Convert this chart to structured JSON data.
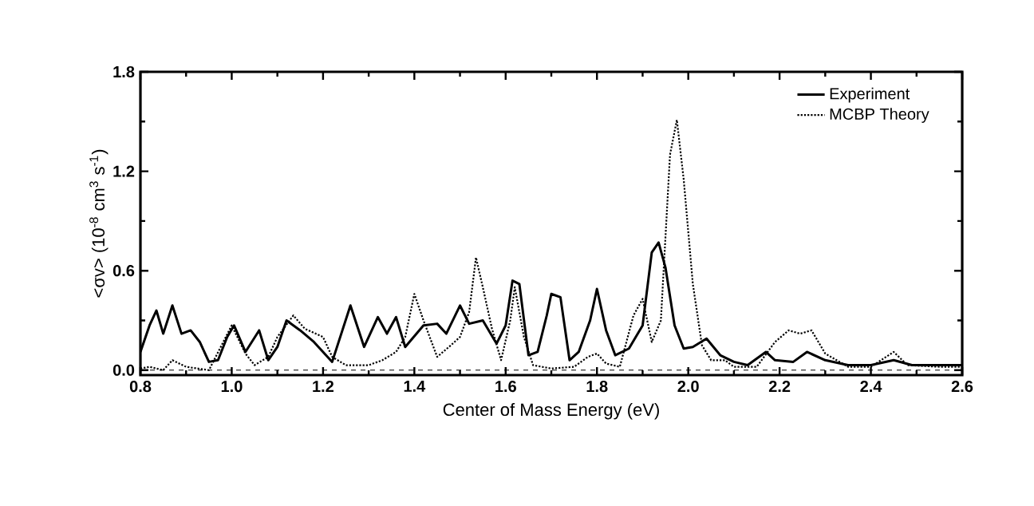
{
  "chart_data": {
    "type": "line",
    "xlabel": "Center of Mass Energy (eV)",
    "ylabel": "<σv> (10$^{-8}$ cm$^{3}$ s$^{-1}$)",
    "xlim": [
      0.8,
      2.6
    ],
    "xticks": [
      0.8,
      {
        "value": 1.0,
        "label": "1.0"
      },
      1.2,
      1.4,
      1.6,
      1.8,
      {
        "value": 2.0,
        "label": "2.0"
      },
      2.2,
      2.4,
      2.6
    ],
    "ylim": [
      -0.03,
      1.8
    ],
    "yticks": [
      {
        "value": 0.0,
        "label": "0.0"
      },
      0.6,
      1.2,
      1.8
    ],
    "legend": "top right",
    "grid": false,
    "marker": "none",
    "ref_lines": [
      {
        "axis": "y",
        "value": 0.0,
        "line_style": "dashed"
      }
    ],
    "series": [
      {
        "name": "Experiment",
        "color": "#000000",
        "line_style": "solid",
        "x": [
          0.8,
          0.82,
          0.835,
          0.85,
          0.87,
          0.89,
          0.91,
          0.93,
          0.95,
          0.97,
          0.99,
          1.005,
          1.03,
          1.06,
          1.08,
          1.1,
          1.12,
          1.15,
          1.18,
          1.22,
          1.26,
          1.29,
          1.32,
          1.34,
          1.36,
          1.38,
          1.42,
          1.45,
          1.47,
          1.5,
          1.52,
          1.55,
          1.58,
          1.6,
          1.615,
          1.63,
          1.65,
          1.67,
          1.69,
          1.7,
          1.72,
          1.74,
          1.76,
          1.785,
          1.8,
          1.82,
          1.84,
          1.87,
          1.9,
          1.92,
          1.935,
          1.95,
          1.97,
          1.99,
          2.01,
          2.04,
          2.07,
          2.1,
          2.13,
          2.17,
          2.19,
          2.23,
          2.26,
          2.3,
          2.35,
          2.4,
          2.45,
          2.49,
          2.55,
          2.6
        ],
        "values": [
          0.11,
          0.27,
          0.36,
          0.22,
          0.39,
          0.22,
          0.24,
          0.17,
          0.05,
          0.06,
          0.2,
          0.27,
          0.11,
          0.24,
          0.06,
          0.14,
          0.3,
          0.24,
          0.17,
          0.05,
          0.39,
          0.14,
          0.32,
          0.22,
          0.32,
          0.14,
          0.27,
          0.28,
          0.22,
          0.39,
          0.28,
          0.3,
          0.16,
          0.27,
          0.54,
          0.52,
          0.09,
          0.11,
          0.33,
          0.46,
          0.44,
          0.06,
          0.11,
          0.3,
          0.49,
          0.24,
          0.09,
          0.13,
          0.27,
          0.71,
          0.77,
          0.62,
          0.27,
          0.13,
          0.14,
          0.19,
          0.09,
          0.05,
          0.03,
          0.11,
          0.06,
          0.05,
          0.11,
          0.06,
          0.03,
          0.03,
          0.06,
          0.03,
          0.03,
          0.03
        ]
      },
      {
        "name": "MCBP Theory",
        "color": "#000000",
        "line_style": "dotted",
        "x": [
          0.8,
          0.82,
          0.85,
          0.87,
          0.9,
          0.95,
          1.0,
          1.03,
          1.05,
          1.08,
          1.1,
          1.135,
          1.16,
          1.2,
          1.22,
          1.25,
          1.3,
          1.33,
          1.36,
          1.38,
          1.4,
          1.42,
          1.45,
          1.48,
          1.5,
          1.52,
          1.535,
          1.55,
          1.57,
          1.59,
          1.61,
          1.62,
          1.64,
          1.66,
          1.7,
          1.75,
          1.78,
          1.8,
          1.82,
          1.85,
          1.88,
          1.9,
          1.92,
          1.94,
          1.96,
          1.975,
          1.99,
          2.01,
          2.03,
          2.05,
          2.08,
          2.1,
          2.15,
          2.19,
          2.22,
          2.245,
          2.27,
          2.3,
          2.35,
          2.4,
          2.45,
          2.48,
          2.55,
          2.6
        ],
        "values": [
          0.01,
          0.02,
          0.0,
          0.06,
          0.02,
          0.0,
          0.27,
          0.1,
          0.03,
          0.08,
          0.2,
          0.33,
          0.25,
          0.2,
          0.08,
          0.03,
          0.03,
          0.06,
          0.11,
          0.2,
          0.46,
          0.3,
          0.08,
          0.15,
          0.2,
          0.35,
          0.68,
          0.5,
          0.25,
          0.06,
          0.3,
          0.5,
          0.2,
          0.03,
          0.01,
          0.02,
          0.08,
          0.1,
          0.04,
          0.02,
          0.33,
          0.43,
          0.17,
          0.3,
          1.3,
          1.51,
          1.15,
          0.52,
          0.15,
          0.06,
          0.06,
          0.02,
          0.02,
          0.17,
          0.24,
          0.22,
          0.24,
          0.1,
          0.02,
          0.02,
          0.11,
          0.03,
          0.02,
          0.02
        ]
      }
    ]
  }
}
